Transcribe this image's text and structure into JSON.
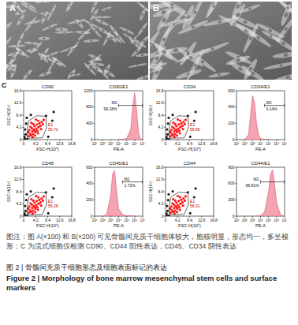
{
  "figure": {
    "images": [
      {
        "label": "A"
      },
      {
        "label": "B"
      }
    ],
    "panel_label": "C",
    "caption": "图注：图 A(×100) 和 B(×200) 可见骨髓间充质干细胞体较大，胞核明显，形态均一，多呈梭形；C 为流式细胞仪检测 CD90、CD44 阳性表达，CD45、CD34 阴性表达",
    "title_cn": "图 2 | 骨髓间充质干细胞形态及细胞表面标记的表达",
    "title_en": "Figure 2 | Morphology of bone marrow mesenchymal stem cells and surface markers"
  },
  "chart_data": [
    {
      "type": "scatter",
      "title": "CD90",
      "x_label": "FSC-H(10⁶)",
      "y_label": "SSC-H(10⁶)",
      "xlim": [
        0,
        16.8
      ],
      "ylim": [
        0,
        16.8
      ],
      "xticks": [
        0,
        4.2,
        8.4,
        12.6,
        16.8
      ],
      "yticks": [
        0,
        4.2,
        8.4,
        12.6,
        16.8
      ],
      "series": [
        {
          "color": "#ff1a1a",
          "x": [
            1.8,
            2.2,
            2.6,
            3.0,
            3.3,
            3.6,
            2.9,
            4.1,
            4.4,
            3.8,
            4.8,
            5.2,
            4.6,
            5.5,
            5.9,
            6.3,
            5.1,
            6.7,
            3.4,
            2.4,
            1.6,
            2.0,
            3.1,
            4.0,
            5.0,
            6.1,
            7.0,
            4.3,
            2.7,
            3.9
          ],
          "values": [
            1.2,
            2.0,
            1.5,
            2.8,
            1.9,
            3.4,
            3.9,
            2.6,
            3.8,
            4.6,
            3.1,
            4.3,
            5.2,
            5.6,
            4.7,
            6.1,
            6.5,
            5.3,
            5.3,
            4.4,
            2.6,
            3.3,
            0.9,
            1.4,
            2.2,
            3.6,
            6.8,
            6.9,
            5.8,
            3.0
          ]
        },
        {
          "color": "#222222",
          "x": [
            0.4,
            0.7,
            0.5,
            0.9,
            1.1,
            2.5,
            7.8,
            10.0,
            8.6,
            0.3,
            10.5,
            1.2
          ],
          "values": [
            0.3,
            1.8,
            3.5,
            5.5,
            7.5,
            8.5,
            8.2,
            6.5,
            1.0,
            0.9,
            9.5,
            0.2
          ]
        }
      ],
      "gate": {
        "name": "E1",
        "value": 55.7,
        "label": "55.70",
        "polygon": [
          [
            1.3,
            0.5
          ],
          [
            6.5,
            0.6
          ],
          [
            8.0,
            4.0
          ],
          [
            7.8,
            8.0
          ],
          [
            4.5,
            8.2
          ],
          [
            1.8,
            6.5
          ],
          [
            1.2,
            3.0
          ]
        ]
      }
    },
    {
      "type": "area",
      "title": "CD90/E1",
      "x_label": "PE-A",
      "log": "x",
      "xlim": [
        10,
        10000000
      ],
      "ylim": [
        0,
        1200
      ],
      "xticks": [
        {
          "value": 10,
          "label": "10¹"
        },
        {
          "value": 100,
          "label": "10²"
        },
        {
          "value": 1000,
          "label": "10³"
        },
        {
          "value": 10000,
          "label": "10⁴"
        },
        {
          "value": 100000,
          "label": "10⁵"
        },
        {
          "value": 1000000,
          "label": "10⁶"
        },
        {
          "value": 10000000,
          "label": "10⁷"
        }
      ],
      "yticks": [
        0,
        400,
        800,
        1200
      ],
      "color": "#f4a3b1",
      "x": [
        10000,
        31623,
        100000,
        316228,
        562341,
        1000000,
        1778279,
        3162278,
        5623413,
        10000000
      ],
      "values": [
        0,
        5,
        30,
        250,
        800,
        1150,
        700,
        150,
        20,
        0
      ],
      "gate": {
        "name": "M2",
        "value": 99.28,
        "label": "99.28%",
        "range": [
          10000,
          10000000
        ]
      }
    },
    {
      "type": "scatter",
      "title": "CD34",
      "x_label": "FSC-H(10⁶)",
      "y_label": "SSC-H(10⁶)",
      "xlim": [
        0,
        16.8
      ],
      "ylim": [
        0,
        16.8
      ],
      "xticks": [
        0,
        4.2,
        8.4,
        12.6,
        16.8
      ],
      "yticks": [
        0,
        4.2,
        8.4,
        12.6,
        16.8
      ],
      "series": [
        {
          "color": "#ff1a1a",
          "x": [
            1.8,
            2.2,
            2.6,
            3.0,
            3.3,
            3.6,
            2.9,
            4.1,
            4.4,
            3.8,
            4.8,
            5.2,
            4.6,
            5.5,
            5.9,
            6.3,
            5.1,
            6.7,
            3.4,
            2.4,
            1.6,
            2.0,
            3.1,
            4.0,
            5.0,
            6.1,
            7.0,
            4.3,
            2.7,
            3.9
          ],
          "values": [
            1.2,
            2.0,
            1.5,
            2.8,
            1.9,
            3.4,
            3.9,
            2.6,
            3.8,
            4.6,
            3.1,
            4.3,
            5.2,
            5.6,
            4.7,
            6.1,
            6.5,
            5.3,
            5.3,
            4.4,
            2.6,
            3.3,
            0.9,
            1.4,
            2.2,
            3.6,
            6.8,
            6.9,
            5.8,
            3.0
          ]
        },
        {
          "color": "#222222",
          "x": [
            0.4,
            0.7,
            0.5,
            0.9,
            1.1,
            2.5,
            7.8,
            10.0,
            8.6,
            0.3,
            10.5,
            1.2
          ],
          "values": [
            0.3,
            1.8,
            3.5,
            5.5,
            7.5,
            8.5,
            8.2,
            6.5,
            1.0,
            0.9,
            9.5,
            0.2
          ]
        }
      ],
      "gate": {
        "name": "E1",
        "value": 58.86,
        "label": "58.86",
        "polygon": [
          [
            1.3,
            0.5
          ],
          [
            6.5,
            0.6
          ],
          [
            8.0,
            4.0
          ],
          [
            7.8,
            8.0
          ],
          [
            4.5,
            8.2
          ],
          [
            1.8,
            6.5
          ],
          [
            1.2,
            3.0
          ]
        ]
      }
    },
    {
      "type": "area",
      "title": "CD34/E1",
      "x_label": "PE-A",
      "log": "x",
      "xlim": [
        10,
        10000000
      ],
      "ylim": [
        0,
        600
      ],
      "xticks": [
        {
          "value": 10,
          "label": "10¹"
        },
        {
          "value": 100,
          "label": "10²"
        },
        {
          "value": 1000,
          "label": "10³"
        },
        {
          "value": 10000,
          "label": "10⁴"
        },
        {
          "value": 100000,
          "label": "10⁵"
        },
        {
          "value": 1000000,
          "label": "10⁶"
        },
        {
          "value": 10000000,
          "label": "10⁷"
        }
      ],
      "yticks": [
        0,
        200,
        400,
        600
      ],
      "color": "#f4a3b1",
      "x": [
        100,
        316,
        562,
        1000,
        1778,
        3162,
        5623,
        10000,
        31623,
        100000
      ],
      "values": [
        0,
        60,
        300,
        540,
        450,
        200,
        60,
        15,
        3,
        0
      ],
      "gate": {
        "name": "M2",
        "value": 0.14,
        "label": "0.14%",
        "range": [
          31623,
          10000000
        ]
      }
    },
    {
      "type": "scatter",
      "title": "CD45",
      "x_label": "FSC-H(10⁶)",
      "y_label": "SSC-H(10⁶)",
      "xlim": [
        0,
        16.8
      ],
      "ylim": [
        0,
        16.8
      ],
      "xticks": [
        0,
        4.2,
        8.4,
        12.6,
        16.8
      ],
      "yticks": [
        0,
        4.2,
        8.4,
        12.6,
        16.8
      ],
      "series": [
        {
          "color": "#ff1a1a",
          "x": [
            1.8,
            2.2,
            2.6,
            3.0,
            3.3,
            3.6,
            2.9,
            4.1,
            4.4,
            3.8,
            4.8,
            5.2,
            4.6,
            5.5,
            5.9,
            6.3,
            5.1,
            6.7,
            3.4,
            2.4,
            1.6,
            2.0,
            3.1,
            4.0,
            5.0,
            6.1,
            7.0,
            4.3,
            2.7,
            3.9
          ],
          "values": [
            1.2,
            2.0,
            1.5,
            2.8,
            1.9,
            3.4,
            3.9,
            2.6,
            3.8,
            4.6,
            3.1,
            4.3,
            5.2,
            5.6,
            4.7,
            6.1,
            6.5,
            5.3,
            5.3,
            4.4,
            2.6,
            3.3,
            0.9,
            1.4,
            2.2,
            3.6,
            6.8,
            6.9,
            5.8,
            3.0
          ]
        },
        {
          "color": "#222222",
          "x": [
            0.4,
            0.7,
            0.5,
            0.9,
            1.1,
            2.5,
            7.8,
            10.0,
            8.6,
            0.3,
            10.5,
            1.2
          ],
          "values": [
            0.3,
            1.8,
            3.5,
            5.5,
            7.5,
            8.5,
            8.2,
            6.5,
            1.0,
            0.9,
            9.5,
            0.2
          ]
        }
      ],
      "gate": {
        "name": "E1",
        "value": 58.28,
        "label": "58.28",
        "polygon": [
          [
            1.3,
            0.5
          ],
          [
            6.5,
            0.6
          ],
          [
            8.0,
            4.0
          ],
          [
            7.8,
            8.0
          ],
          [
            4.5,
            8.2
          ],
          [
            1.8,
            6.5
          ],
          [
            1.2,
            3.0
          ]
        ]
      }
    },
    {
      "type": "area",
      "title": "CD45/E1",
      "x_label": "PE-A",
      "log": "x",
      "xlim": [
        10,
        10000000
      ],
      "ylim": [
        0,
        600
      ],
      "xticks": [
        {
          "value": 10,
          "label": "10¹"
        },
        {
          "value": 100,
          "label": "10²"
        },
        {
          "value": 1000,
          "label": "10³"
        },
        {
          "value": 10000,
          "label": "10⁴"
        },
        {
          "value": 100000,
          "label": "10⁵"
        },
        {
          "value": 1000000,
          "label": "10⁶"
        },
        {
          "value": 10000000,
          "label": "10⁷"
        }
      ],
      "yticks": [
        0,
        200,
        400,
        600
      ],
      "color": "#f4a3b1",
      "x": [
        100,
        316,
        1000,
        1778,
        3162,
        5623,
        10000,
        31623,
        100000,
        1000000
      ],
      "values": [
        0,
        20,
        250,
        520,
        560,
        300,
        90,
        20,
        5,
        0
      ],
      "gate": {
        "name": "M2",
        "value": 1.72,
        "label": "1.72%",
        "range": [
          31623,
          10000000
        ]
      }
    },
    {
      "type": "scatter",
      "title": "CD44",
      "x_label": "FSC-H(10⁶)",
      "y_label": "SSC-H(10⁶)",
      "xlim": [
        0,
        16.8
      ],
      "ylim": [
        0,
        16.8
      ],
      "xticks": [
        0,
        4.2,
        8.4,
        12.6,
        16.8
      ],
      "yticks": [
        0,
        4.2,
        8.4,
        12.6,
        16.8
      ],
      "series": [
        {
          "color": "#ff1a1a",
          "x": [
            1.8,
            2.2,
            2.6,
            3.0,
            3.3,
            3.6,
            2.9,
            4.1,
            4.4,
            3.8,
            4.8,
            5.2,
            4.6,
            5.5,
            5.9,
            6.3,
            5.1,
            6.7,
            3.4,
            2.4,
            1.6,
            2.0,
            3.1,
            4.0,
            5.0,
            6.1,
            7.0,
            4.3,
            2.7,
            3.9
          ],
          "values": [
            1.2,
            2.0,
            1.5,
            2.8,
            1.9,
            3.4,
            3.9,
            2.6,
            3.8,
            4.6,
            3.1,
            4.3,
            5.2,
            5.6,
            4.7,
            6.1,
            6.5,
            5.3,
            5.3,
            4.4,
            2.6,
            3.3,
            0.9,
            1.4,
            2.2,
            3.6,
            6.8,
            6.9,
            5.8,
            3.0
          ]
        },
        {
          "color": "#222222",
          "x": [
            0.4,
            0.7,
            0.5,
            0.9,
            1.1,
            2.5,
            7.8,
            10.0,
            8.6,
            0.3,
            10.5,
            1.2
          ],
          "values": [
            0.3,
            1.8,
            3.5,
            5.5,
            7.5,
            8.5,
            8.2,
            6.5,
            1.0,
            0.9,
            9.5,
            0.2
          ]
        }
      ],
      "gate": {
        "name": "E1",
        "value": 58.31,
        "label": "58.31",
        "polygon": [
          [
            1.3,
            0.5
          ],
          [
            6.5,
            0.6
          ],
          [
            8.0,
            4.0
          ],
          [
            7.8,
            8.0
          ],
          [
            4.5,
            8.2
          ],
          [
            1.8,
            6.5
          ],
          [
            1.2,
            3.0
          ]
        ]
      }
    },
    {
      "type": "area",
      "title": "CD44/E1",
      "x_label": "PE-A",
      "log": "x",
      "xlim": [
        10,
        10000000
      ],
      "ylim": [
        0,
        900
      ],
      "xticks": [
        {
          "value": 10,
          "label": "10¹"
        },
        {
          "value": 100,
          "label": "10²"
        },
        {
          "value": 1000,
          "label": "10³"
        },
        {
          "value": 10000,
          "label": "10⁴"
        },
        {
          "value": 100000,
          "label": "10⁵"
        },
        {
          "value": 1000000,
          "label": "10⁶"
        },
        {
          "value": 10000000,
          "label": "10⁷"
        }
      ],
      "yticks": [
        0,
        300,
        600,
        900
      ],
      "color": "#f4a3b1",
      "x": [
        3162,
        10000,
        31623,
        100000,
        177828,
        316228,
        562341,
        1000000,
        3162278,
        10000000
      ],
      "values": [
        0,
        10,
        80,
        450,
        780,
        850,
        600,
        250,
        20,
        0
      ],
      "gate": {
        "name": "M2",
        "value": 99.81,
        "label": "99.81%",
        "range": [
          10000,
          10000000
        ]
      }
    }
  ]
}
